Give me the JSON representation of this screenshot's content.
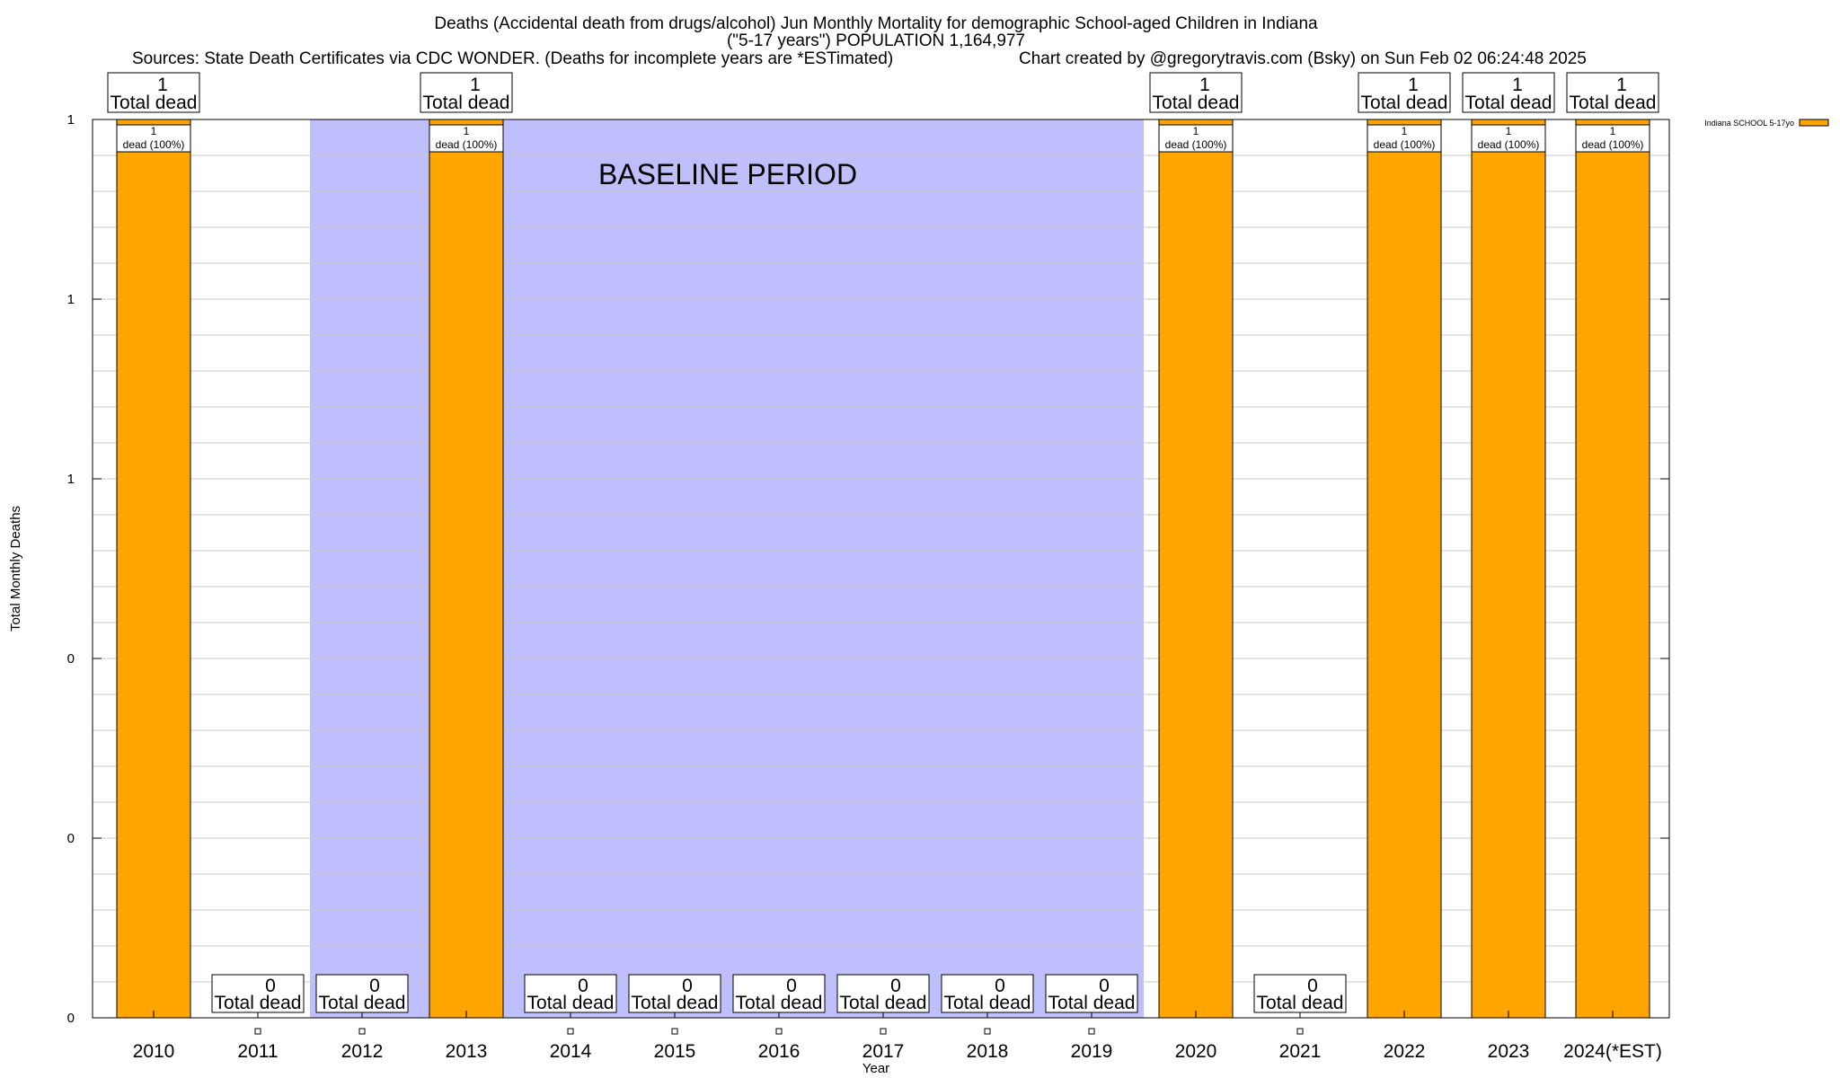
{
  "chart_data": {
    "type": "bar",
    "title_line1": "Deaths (Accidental death from drugs/alcohol) Jun Monthly Mortality for demographic School-aged Children in Indiana",
    "title_line2": "(\"5-17 years\") POPULATION 1,164,977",
    "sources": "Sources: State Death Certificates via CDC WONDER. (Deaths for incomplete years are *ESTimated)",
    "credit": "Chart created by @gregorytravis.com (Bsky) on Sun Feb 02 06:24:48 2025",
    "xlabel": "Year",
    "ylabel": "Total Monthly Deaths",
    "ylim": [
      0,
      1
    ],
    "y_ticks": [
      {
        "value": 0,
        "label": "0"
      },
      {
        "value": 0.2,
        "label": "0"
      },
      {
        "value": 0.4,
        "label": "0"
      },
      {
        "value": 0.6,
        "label": "1"
      },
      {
        "value": 0.8,
        "label": "1"
      },
      {
        "value": 1.0,
        "label": "1"
      }
    ],
    "categories": [
      "2010",
      "2011",
      "2012",
      "2013",
      "2014",
      "2015",
      "2016",
      "2017",
      "2018",
      "2019",
      "2020",
      "2021",
      "2022",
      "2023",
      "2024(*EST)"
    ],
    "series": [
      {
        "name": "Indiana SCHOOL 5-17yo",
        "color": "#ffa500",
        "values": [
          1,
          0,
          0,
          1,
          0,
          0,
          0,
          0,
          0,
          0,
          1,
          0,
          1,
          1,
          1
        ]
      }
    ],
    "total_label_suffix": "Total dead",
    "bar_label_suffix": "dead (100%)",
    "baseline_label": "BASELINE PERIOD",
    "baseline_start": "2012",
    "baseline_end": "2019",
    "baseline_color": "#bfbffd",
    "grid": true,
    "legend_position": "top-right"
  }
}
